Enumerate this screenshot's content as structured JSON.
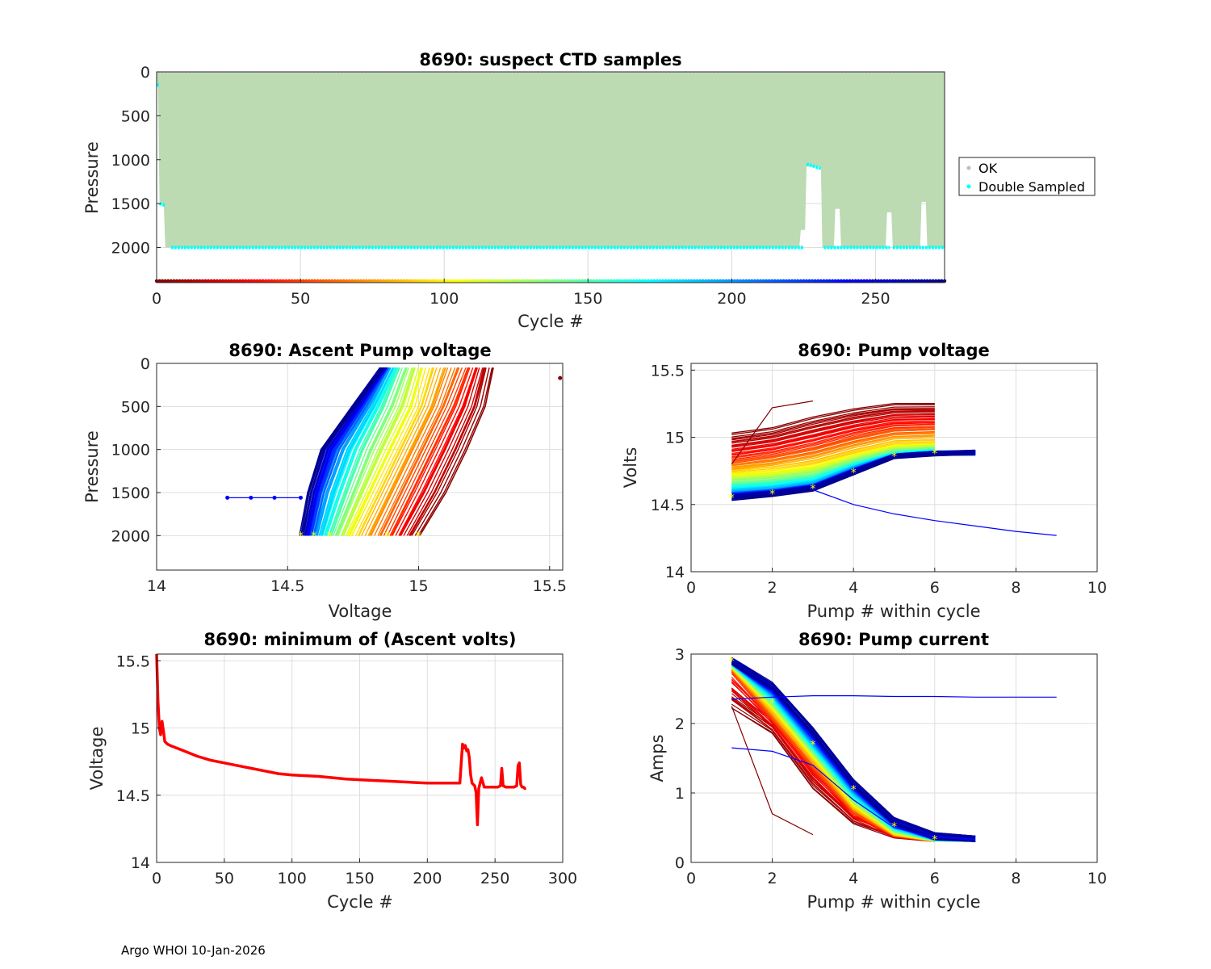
{
  "footer": "Argo WHOI 10-Jan-2026",
  "chart_data": [
    {
      "id": "p1",
      "type": "scatter",
      "title": "8690: suspect CTD samples",
      "xlabel": "Cycle #",
      "ylabel": "Pressure",
      "xlim": [
        0,
        274
      ],
      "ylim": [
        0,
        2400
      ],
      "y_reversed": true,
      "xticks": [
        0,
        50,
        100,
        150,
        200,
        250
      ],
      "yticks": [
        0,
        500,
        1000,
        1500,
        2000
      ],
      "legend": {
        "position": "outside-right",
        "entries": [
          {
            "label": "OK",
            "color": "#bdbdbd"
          },
          {
            "label": "Double Sampled",
            "color": "#00ffff"
          }
        ]
      },
      "fill_color": "#bcdbb2",
      "ok_profile_depth": 2000,
      "double_sampled_depths": [
        {
          "x": [
            0,
            1
          ],
          "y": [
            150,
            150
          ]
        },
        {
          "x": [
            1,
            3
          ],
          "y": [
            1500,
            1520
          ]
        },
        {
          "x": [
            5,
            225
          ],
          "y": [
            2000,
            2000
          ]
        },
        {
          "x": [
            226,
            231
          ],
          "y": [
            1050,
            1100
          ]
        },
        {
          "x": [
            232,
            255
          ],
          "y": [
            2000,
            2000
          ]
        },
        {
          "x": [
            256,
            274
          ],
          "y": [
            2000,
            2000
          ]
        }
      ],
      "colorbar_cycles": [
        0,
        274
      ]
    },
    {
      "id": "p2",
      "type": "line",
      "title": "8690: Ascent Pump voltage",
      "xlabel": "Voltage",
      "ylabel": "Pressure",
      "xlim": [
        14,
        15.55
      ],
      "ylim": [
        0,
        2400
      ],
      "y_reversed": true,
      "xticks": [
        14,
        14.5,
        15,
        15.5
      ],
      "yticks": [
        0,
        500,
        1000,
        1500,
        2000
      ],
      "profile_pressures": [
        2000,
        1500,
        1000,
        500,
        50
      ],
      "representative_profiles": [
        {
          "cycle": 1,
          "volts": [
            15.0,
            15.1,
            15.18,
            15.25,
            15.28
          ]
        },
        {
          "cycle": 50,
          "volts": [
            14.88,
            14.96,
            15.04,
            15.12,
            15.18
          ]
        },
        {
          "cycle": 100,
          "volts": [
            14.74,
            14.82,
            14.9,
            14.98,
            15.02
          ]
        },
        {
          "cycle": 150,
          "volts": [
            14.66,
            14.72,
            14.78,
            14.86,
            14.92
          ]
        },
        {
          "cycle": 200,
          "volts": [
            14.6,
            14.64,
            14.7,
            14.8,
            14.88
          ]
        },
        {
          "cycle": 270,
          "volts": [
            14.55,
            14.58,
            14.63,
            14.75,
            14.86
          ]
        }
      ],
      "outliers": [
        {
          "x": [
            14.27,
            14.36,
            14.45,
            14.55
          ],
          "y": [
            1560,
            1560,
            1560,
            1560
          ],
          "color": "#0000ff"
        },
        {
          "x": [
            15.54
          ],
          "y": [
            170
          ],
          "color": "#800000"
        }
      ],
      "start_marker_color": "#ffff00"
    },
    {
      "id": "p3",
      "type": "line",
      "title": "8690: Pump voltage",
      "xlabel": "Pump # within cycle",
      "ylabel": "Volts",
      "xlim": [
        0,
        10
      ],
      "ylim": [
        14,
        15.55
      ],
      "xticks": [
        0,
        2,
        4,
        6,
        8,
        10
      ],
      "yticks": [
        14,
        14.5,
        15,
        15.5
      ],
      "ytick_labels": [
        "14",
        "14.5",
        "15",
        "15.5"
      ],
      "representative_series": [
        {
          "cycle": 1,
          "x": [
            1,
            2,
            3,
            4,
            5,
            6
          ],
          "y": [
            15.02,
            15.06,
            15.14,
            15.2,
            15.24,
            15.24
          ]
        },
        {
          "cycle": 50,
          "x": [
            1,
            2,
            3,
            4,
            5,
            6
          ],
          "y": [
            14.82,
            14.86,
            14.92,
            15.0,
            15.06,
            15.07
          ]
        },
        {
          "cycle": 100,
          "x": [
            1,
            2,
            3,
            4,
            5,
            6
          ],
          "y": [
            14.72,
            14.74,
            14.78,
            14.86,
            14.93,
            14.94
          ]
        },
        {
          "cycle": 150,
          "x": [
            1,
            2,
            3,
            4,
            5,
            6
          ],
          "y": [
            14.64,
            14.66,
            14.7,
            14.8,
            14.88,
            14.9
          ]
        },
        {
          "cycle": 200,
          "x": [
            1,
            2,
            3,
            4,
            5,
            6,
            7
          ],
          "y": [
            14.58,
            14.6,
            14.64,
            14.76,
            14.86,
            14.88,
            14.88
          ]
        },
        {
          "cycle": 270,
          "x": [
            1,
            2,
            3,
            4,
            5,
            6,
            7
          ],
          "y": [
            14.55,
            14.58,
            14.62,
            14.74,
            14.86,
            14.88,
            14.89
          ]
        }
      ],
      "outliers": [
        {
          "x": [
            3,
            4,
            5,
            6,
            7,
            8,
            9
          ],
          "y": [
            14.61,
            14.5,
            14.43,
            14.38,
            14.34,
            14.3,
            14.27
          ],
          "color": "#0000ff"
        },
        {
          "x": [
            1,
            2,
            3
          ],
          "y": [
            14.8,
            15.22,
            15.27
          ],
          "color": "#800000"
        }
      ]
    },
    {
      "id": "p4",
      "type": "line",
      "title": "8690: minimum of (Ascent volts)",
      "xlabel": "Cycle #",
      "ylabel": "Voltage",
      "xlim": [
        0,
        300
      ],
      "ylim": [
        14,
        15.55
      ],
      "xticks": [
        0,
        50,
        100,
        150,
        200,
        250,
        300
      ],
      "yticks": [
        14,
        14.5,
        15,
        15.5
      ],
      "ytick_labels": [
        "14",
        "14.5",
        "15",
        "15.5"
      ],
      "color": "#ff0000",
      "series": {
        "x": [
          0,
          1,
          2,
          3,
          4,
          5,
          6,
          8,
          10,
          20,
          30,
          40,
          50,
          60,
          70,
          80,
          90,
          100,
          110,
          120,
          130,
          140,
          150,
          160,
          170,
          180,
          190,
          200,
          210,
          220,
          224,
          225,
          226,
          227,
          228,
          229,
          230,
          231,
          232,
          233,
          234,
          235,
          236,
          237,
          238,
          239,
          240,
          242,
          244,
          246,
          248,
          250,
          252,
          254,
          255,
          256,
          258,
          260,
          262,
          264,
          266,
          267,
          268,
          269,
          270,
          271,
          272,
          273
        ],
        "y": [
          15.55,
          15.2,
          15.0,
          14.95,
          15.05,
          14.98,
          14.9,
          14.88,
          14.87,
          14.83,
          14.79,
          14.76,
          14.74,
          14.72,
          14.7,
          14.68,
          14.66,
          14.65,
          14.645,
          14.64,
          14.63,
          14.62,
          14.615,
          14.61,
          14.605,
          14.6,
          14.595,
          14.59,
          14.59,
          14.59,
          14.59,
          14.74,
          14.88,
          14.85,
          14.87,
          14.83,
          14.84,
          14.78,
          14.65,
          14.59,
          14.58,
          14.57,
          14.52,
          14.28,
          14.55,
          14.59,
          14.63,
          14.56,
          14.56,
          14.56,
          14.56,
          14.56,
          14.56,
          14.57,
          14.7,
          14.57,
          14.56,
          14.56,
          14.56,
          14.56,
          14.57,
          14.72,
          14.74,
          14.58,
          14.56,
          14.56,
          14.55,
          14.55
        ]
      }
    },
    {
      "id": "p5",
      "type": "line",
      "title": "8690: Pump current",
      "xlabel": "Pump # within cycle",
      "ylabel": "Amps",
      "xlim": [
        0,
        10
      ],
      "ylim": [
        0,
        3
      ],
      "xticks": [
        0,
        2,
        4,
        6,
        8,
        10
      ],
      "yticks": [
        0,
        1,
        2,
        3
      ],
      "representative_series": [
        {
          "cycle": 1,
          "x": [
            1,
            2,
            3,
            4,
            5,
            6
          ],
          "y": [
            2.25,
            1.9,
            1.1,
            0.6,
            0.4,
            0.35
          ]
        },
        {
          "cycle": 50,
          "x": [
            1,
            2,
            3,
            4,
            5,
            6
          ],
          "y": [
            2.8,
            2.1,
            1.4,
            0.75,
            0.42,
            0.35
          ]
        },
        {
          "cycle": 100,
          "x": [
            1,
            2,
            3,
            4,
            5,
            6
          ],
          "y": [
            2.85,
            2.25,
            1.55,
            0.85,
            0.45,
            0.35
          ]
        },
        {
          "cycle": 150,
          "x": [
            1,
            2,
            3,
            4,
            5,
            6,
            7
          ],
          "y": [
            2.88,
            2.35,
            1.65,
            0.95,
            0.5,
            0.36,
            0.33
          ]
        },
        {
          "cycle": 200,
          "x": [
            1,
            2,
            3,
            4,
            5,
            6,
            7
          ],
          "y": [
            2.9,
            2.45,
            1.75,
            1.05,
            0.55,
            0.37,
            0.33
          ]
        },
        {
          "cycle": 270,
          "x": [
            1,
            2,
            3,
            4,
            5,
            6,
            7
          ],
          "y": [
            2.9,
            2.55,
            1.9,
            1.15,
            0.6,
            0.38,
            0.33
          ]
        }
      ],
      "outliers": [
        {
          "x": [
            1,
            2,
            3,
            4,
            5,
            6,
            7,
            8,
            9
          ],
          "y": [
            2.35,
            2.38,
            2.4,
            2.4,
            2.39,
            2.39,
            2.38,
            2.38,
            2.38
          ],
          "color": "#0000ff"
        },
        {
          "x": [
            1,
            2,
            3
          ],
          "y": [
            2.25,
            0.7,
            0.4
          ],
          "color": "#800000"
        },
        {
          "x": [
            1,
            2,
            3,
            4,
            5,
            6,
            7
          ],
          "y": [
            1.65,
            1.6,
            1.4,
            0.9,
            0.5,
            0.36,
            0.33
          ],
          "color": "#0000ff"
        }
      ]
    }
  ]
}
